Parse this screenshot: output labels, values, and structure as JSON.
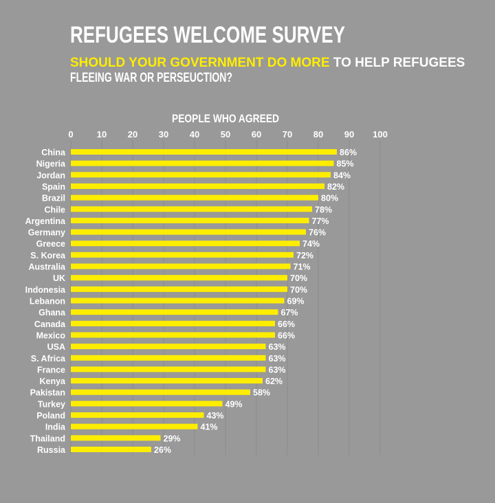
{
  "title": "REFUGEES WELCOME SURVEY",
  "subtitle": {
    "highlight": "SHOULD YOUR GOVERNMENT DO MORE",
    "rest": " TO HELP REFUGEES",
    "line2": "FLEEING WAR OR PERSEUCTION?"
  },
  "colors": {
    "background": "#999999",
    "bar": "#ffed00",
    "text": "#ffffff",
    "highlight": "#ffed00",
    "grid": "#8a8a8a"
  },
  "chart_data": {
    "type": "bar",
    "orientation": "horizontal",
    "xlabel": "PEOPLE WHO AGREED",
    "xlim": [
      0,
      100
    ],
    "xticks": [
      0,
      10,
      20,
      30,
      40,
      50,
      60,
      70,
      80,
      90,
      100
    ],
    "grid": true,
    "value_suffix": "%",
    "categories": [
      "China",
      "Nigeria",
      "Jordan",
      "Spain",
      "Brazil",
      "Chile",
      "Argentina",
      "Germany",
      "Greece",
      "S. Korea",
      "Australia",
      "UK",
      "Indonesia",
      "Lebanon",
      "Ghana",
      "Canada",
      "Mexico",
      "USA",
      "S. Africa",
      "France",
      "Kenya",
      "Pakistan",
      "Turkey",
      "Poland",
      "India",
      "Thailand",
      "Russia"
    ],
    "values": [
      86,
      85,
      84,
      82,
      80,
      78,
      77,
      76,
      74,
      72,
      71,
      70,
      70,
      69,
      67,
      66,
      66,
      63,
      63,
      63,
      62,
      58,
      49,
      43,
      41,
      29,
      26
    ]
  }
}
